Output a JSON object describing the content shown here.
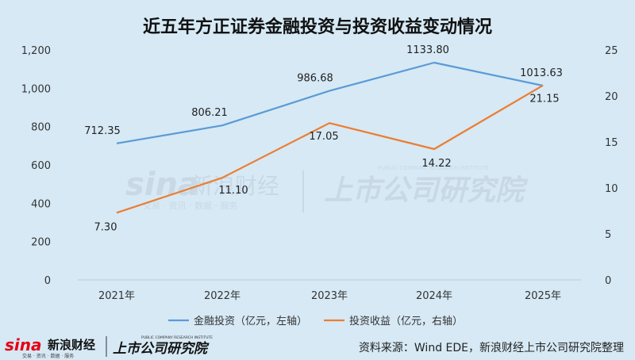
{
  "chart_data": {
    "type": "line",
    "title": "近五年方正证券金融投资与投资收益变动情况",
    "categories": [
      "2021年",
      "2022年",
      "2023年",
      "2024年",
      "2025年"
    ],
    "y_left": {
      "range": [
        0,
        1200
      ],
      "ticks": [
        "0",
        "200",
        "400",
        "600",
        "800",
        "1,000",
        "1,200"
      ]
    },
    "y_right": {
      "range": [
        0,
        25
      ],
      "ticks": [
        "0",
        "5",
        "10",
        "15",
        "20",
        "25"
      ]
    },
    "series": [
      {
        "name": "金融投资（亿元，左轴）",
        "axis": "left",
        "color": "#5b9bd5",
        "values": [
          712.35,
          806.21,
          986.68,
          1133.8,
          1013.63
        ],
        "labels": [
          "712.35",
          "806.21",
          "986.68",
          "1133.80",
          "1013.63"
        ]
      },
      {
        "name": "投资收益（亿元，右轴）",
        "axis": "right",
        "color": "#ed7d31",
        "values": [
          7.3,
          11.1,
          17.05,
          14.22,
          21.15
        ],
        "labels": [
          "7.30",
          "11.10",
          "17.05",
          "14.22",
          "21.15"
        ]
      }
    ],
    "grid": false,
    "legend_position": "bottom"
  },
  "watermark": {
    "brand_latin": "sina",
    "brand_cn": "新浪财经",
    "brand_tagline": "交易 · 资讯 · 数据 · 服务",
    "institute_cn": "上市公司研究院",
    "institute_en": "PUBLIC COMPANY RESEARCH INSTITUTE"
  },
  "footer": {
    "logo_latin": "sina",
    "logo_cn": "新浪财经",
    "logo_tagline": "交易 · 资讯 · 数据 · 服务",
    "institute_cn": "上市公司研究院",
    "institute_en": "PUBLIC COMPANY RESEARCH INSTITUTE",
    "source": "资料来源：Wind EDE，新浪财经上市公司研究院整理"
  },
  "colors": {
    "background": "#d6e9f5",
    "brand_red": "#e60012",
    "footer_dark": "#111111"
  }
}
